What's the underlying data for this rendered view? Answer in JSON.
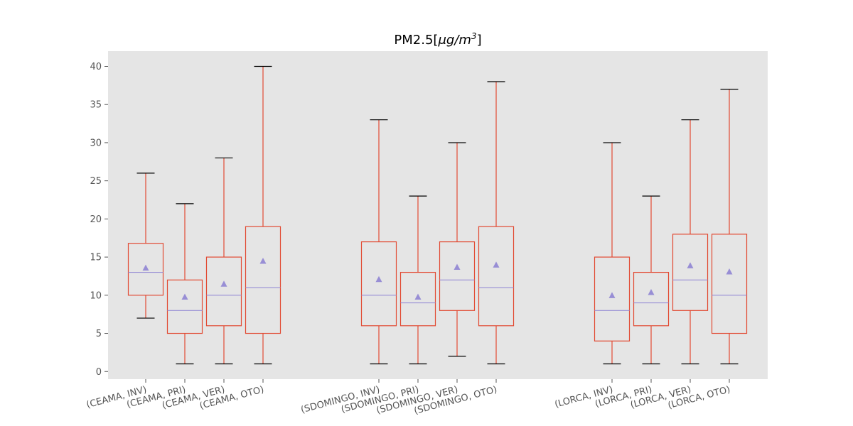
{
  "chart_data": {
    "type": "box",
    "title": "PM2.5[μg/m³]",
    "title_text": "PM2.5[",
    "title_unit_mu": "μ",
    "title_unit_g": "g/m",
    "title_unit_sup": "3",
    "title_close": "]",
    "ylim": [
      -1,
      42
    ],
    "yticks": [
      0,
      5,
      10,
      15,
      20,
      25,
      30,
      35,
      40
    ],
    "grid": false,
    "colors": {
      "background": "#e5e5e5",
      "box": "#e24a33",
      "median": "#988ed5",
      "mean": "#988ed5",
      "cap": "#000000"
    },
    "groups": [
      {
        "boxes": [
          {
            "label": "(CEAMA, INV)",
            "whislo": 7,
            "q1": 10,
            "med": 13,
            "q3": 16.8,
            "whishi": 26,
            "mean": 13.6
          },
          {
            "label": "(CEAMA, PRI)",
            "whislo": 1,
            "q1": 5,
            "med": 8,
            "q3": 12,
            "whishi": 22,
            "mean": 9.8
          },
          {
            "label": "(CEAMA, VER)",
            "whislo": 1,
            "q1": 6,
            "med": 10,
            "q3": 15,
            "whishi": 28,
            "mean": 11.5
          },
          {
            "label": "(CEAMA, OTO)",
            "whislo": 1,
            "q1": 5,
            "med": 11,
            "q3": 19,
            "whishi": 40,
            "mean": 14.5
          }
        ]
      },
      {
        "boxes": [
          {
            "label": "(SDOMINGO, INV)",
            "whislo": 1,
            "q1": 6,
            "med": 10,
            "q3": 17,
            "whishi": 33,
            "mean": 12.1
          },
          {
            "label": "(SDOMINGO, PRI)",
            "whislo": 1,
            "q1": 6,
            "med": 9,
            "q3": 13,
            "whishi": 23,
            "mean": 9.8
          },
          {
            "label": "(SDOMINGO, VER)",
            "whislo": 2,
            "q1": 8,
            "med": 12,
            "q3": 17,
            "whishi": 30,
            "mean": 13.7
          },
          {
            "label": "(SDOMINGO, OTO)",
            "whislo": 1,
            "q1": 6,
            "med": 11,
            "q3": 19,
            "whishi": 38,
            "mean": 14
          }
        ]
      },
      {
        "boxes": [
          {
            "label": "(LORCA, INV)",
            "whislo": 1,
            "q1": 4,
            "med": 8,
            "q3": 15,
            "whishi": 30,
            "mean": 10
          },
          {
            "label": "(LORCA, PRI)",
            "whislo": 1,
            "q1": 6,
            "med": 9,
            "q3": 13,
            "whishi": 23,
            "mean": 10.4
          },
          {
            "label": "(LORCA, VER)",
            "whislo": 1,
            "q1": 8,
            "med": 12,
            "q3": 18,
            "whishi": 33,
            "mean": 13.9
          },
          {
            "label": "(LORCA, OTO)",
            "whislo": 1,
            "q1": 5,
            "med": 10,
            "q3": 18,
            "whishi": 37,
            "mean": 13.1
          }
        ]
      }
    ]
  }
}
